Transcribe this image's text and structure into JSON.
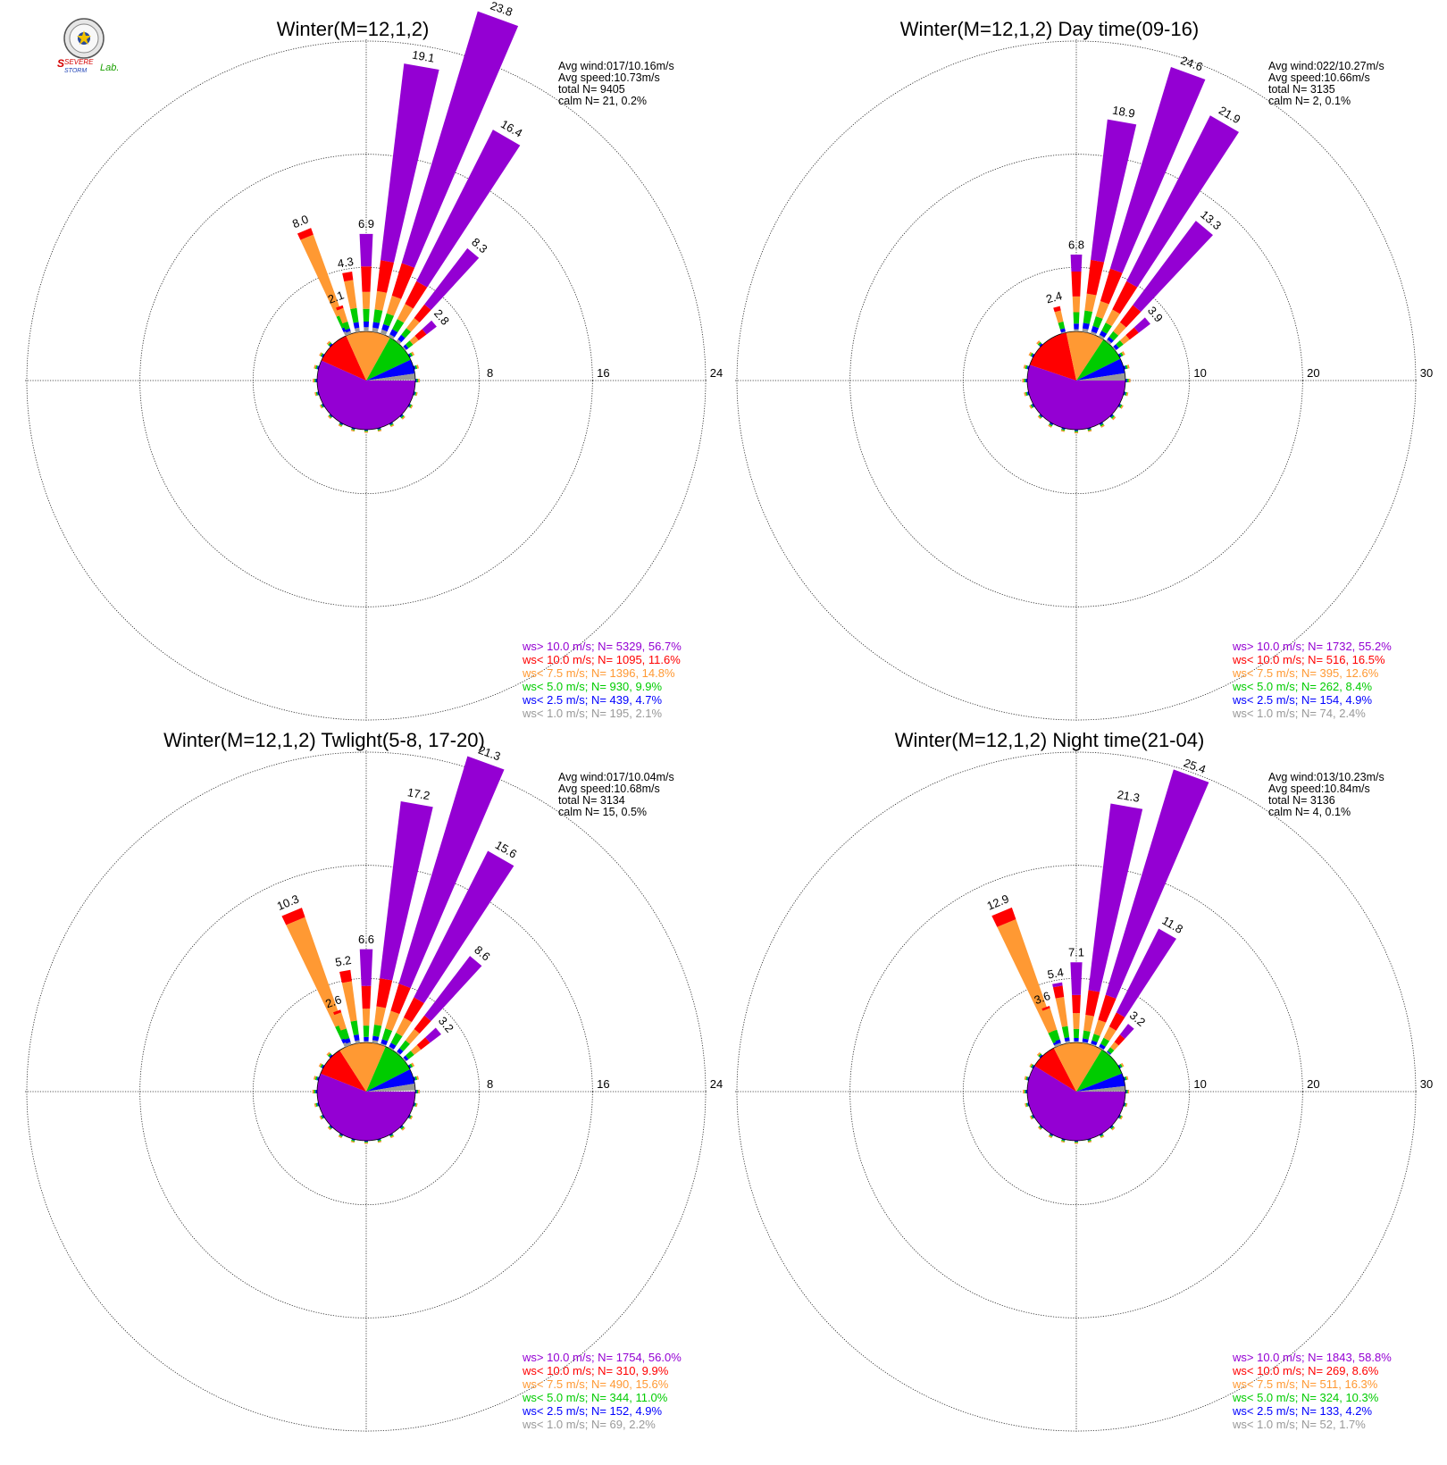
{
  "logo": {
    "text_severe": "SEVERE",
    "text_storm": "STORM",
    "text_lab": "Lab."
  },
  "legend_labels": [
    "ws> 10.0 m/s; N=",
    "ws< 10.0 m/s; N=",
    "ws<  7.5 m/s; N=",
    "ws<  5.0 m/s; N=",
    "ws<  2.5 m/s; N=",
    "ws<  1.0 m/s; N="
  ],
  "class_colors": [
    "#9400d3",
    "#ff0000",
    "#ff9933",
    "#00cc00",
    "#0000ff",
    "#999999"
  ],
  "chart_data": [
    {
      "type": "windrose",
      "title": "Winter(M=12,1,2)",
      "rmax": 24,
      "rings": [
        8,
        16,
        24
      ],
      "stats": [
        "Avg wind:017/10.16m/s",
        "Avg speed:10.73m/s",
        "total N=       9405",
        "calm N=      21,   0.2%"
      ],
      "legend": [
        "5329, 56.7%",
        "1095, 11.6%",
        "1396, 14.8%",
        "930,  9.9%",
        "439,  4.7%",
        "195,  2.1%"
      ],
      "pie_pct": [
        56.7,
        11.6,
        14.8,
        9.9,
        4.7,
        2.1
      ],
      "petals": [
        {
          "dir": 337.5,
          "total": 8.0,
          "label": "8.0",
          "segs": [
            0,
            0.5,
            6.0,
            0.9,
            0.3,
            0.3
          ]
        },
        {
          "dir": 340,
          "total": 2.1,
          "label": "2.1",
          "segs": [
            0,
            0.2,
            1.0,
            0.5,
            0.2,
            0.2
          ]
        },
        {
          "dir": 350,
          "total": 4.3,
          "label": "4.3",
          "segs": [
            0,
            0.6,
            2.0,
            1.0,
            0.4,
            0.3
          ]
        },
        {
          "dir": 0,
          "total": 6.9,
          "label": "6.9",
          "segs": [
            2.3,
            1.8,
            1.2,
            0.9,
            0.4,
            0.3
          ]
        },
        {
          "dir": 10,
          "total": 19.1,
          "label": "19.1",
          "segs": [
            14.0,
            2.2,
            1.3,
            0.9,
            0.4,
            0.3
          ]
        },
        {
          "dir": 20,
          "total": 23.8,
          "label": "23.8",
          "segs": [
            18.6,
            2.4,
            1.3,
            0.8,
            0.4,
            0.3
          ]
        },
        {
          "dir": 30,
          "total": 16.4,
          "label": "16.4",
          "segs": [
            12.0,
            1.8,
            1.2,
            0.8,
            0.4,
            0.2
          ]
        },
        {
          "dir": 40,
          "total": 8.3,
          "label": "8.3",
          "segs": [
            5.0,
            1.2,
            0.9,
            0.6,
            0.4,
            0.2
          ]
        },
        {
          "dir": 50,
          "total": 2.8,
          "label": "2.8",
          "segs": [
            0.9,
            0.7,
            0.5,
            0.4,
            0.2,
            0.1
          ]
        }
      ],
      "small_petals": [
        0.45,
        0.4,
        0.35,
        0.3,
        0.32,
        0.35,
        0.3,
        0.28,
        0.25,
        0.27,
        0.3,
        0.28,
        0.3,
        0.32,
        0.35,
        0.38,
        0.35,
        0.4
      ]
    },
    {
      "type": "windrose",
      "title": "Winter(M=12,1,2) Day time(09-16)",
      "rmax": 30,
      "rings": [
        10,
        20,
        30
      ],
      "stats": [
        "Avg wind:022/10.27m/s",
        "Avg speed:10.66m/s",
        "total N=       3135",
        "calm N=        2,   0.1%"
      ],
      "legend": [
        "1732, 55.2%",
        "516, 16.5%",
        "395, 12.6%",
        "262,  8.4%",
        "154,  4.9%",
        "74,  2.4%"
      ],
      "pie_pct": [
        55.2,
        16.5,
        12.6,
        8.4,
        4.9,
        2.4
      ],
      "petals": [
        {
          "dir": 345,
          "total": 2.4,
          "label": "2.4",
          "segs": [
            0,
            0.4,
            1.0,
            0.6,
            0.3,
            0.1
          ]
        },
        {
          "dir": 0,
          "total": 6.8,
          "label": "6.8",
          "segs": [
            1.5,
            2.2,
            1.4,
            1.0,
            0.5,
            0.2
          ]
        },
        {
          "dir": 10,
          "total": 18.9,
          "label": "18.9",
          "segs": [
            12.5,
            3.0,
            1.5,
            1.1,
            0.5,
            0.3
          ]
        },
        {
          "dir": 20,
          "total": 24.6,
          "label": "24.6",
          "segs": [
            18.6,
            3.0,
            1.4,
            0.9,
            0.5,
            0.2
          ]
        },
        {
          "dir": 30,
          "total": 21.9,
          "label": "21.9",
          "segs": [
            16.4,
            2.8,
            1.3,
            0.8,
            0.4,
            0.2
          ]
        },
        {
          "dir": 40,
          "total": 13.3,
          "label": "13.3",
          "segs": [
            9.3,
            1.9,
            1.0,
            0.6,
            0.3,
            0.2
          ]
        },
        {
          "dir": 50,
          "total": 3.9,
          "label": "3.9",
          "segs": [
            1.3,
            1.0,
            0.7,
            0.5,
            0.3,
            0.1
          ]
        }
      ],
      "small_petals": [
        0.5,
        0.45,
        0.4,
        0.35,
        0.35,
        0.4,
        0.35,
        0.3,
        0.3,
        0.3,
        0.35,
        0.3,
        0.35,
        0.38,
        0.4,
        0.42,
        0.4,
        0.45
      ]
    },
    {
      "type": "windrose",
      "title": "Winter(M=12,1,2) Twlight(5-8, 17-20)",
      "rmax": 24,
      "rings": [
        8,
        16,
        24
      ],
      "stats": [
        "Avg wind:017/10.04m/s",
        "Avg speed:10.68m/s",
        "total N=       3134",
        "calm N=      15,   0.5%"
      ],
      "legend": [
        "1754, 56.0%",
        "310,  9.9%",
        "490, 15.6%",
        "344, 11.0%",
        "152,  4.9%",
        "69,  2.2%"
      ],
      "pie_pct": [
        56.0,
        9.9,
        15.6,
        11.0,
        4.9,
        2.2
      ],
      "petals": [
        {
          "dir": 337.5,
          "total": 10.3,
          "label": "10.3",
          "segs": [
            0,
            0.7,
            8.0,
            1.0,
            0.3,
            0.3
          ]
        },
        {
          "dir": 340,
          "total": 2.6,
          "label": "2.6",
          "segs": [
            0,
            0.2,
            1.2,
            0.7,
            0.3,
            0.2
          ]
        },
        {
          "dir": 350,
          "total": 5.2,
          "label": "5.2",
          "segs": [
            0,
            0.8,
            2.8,
            1.0,
            0.4,
            0.2
          ]
        },
        {
          "dir": 0,
          "total": 6.6,
          "label": "6.6",
          "segs": [
            2.6,
            1.6,
            1.2,
            0.8,
            0.3,
            0.1
          ]
        },
        {
          "dir": 10,
          "total": 17.2,
          "label": "17.2",
          "segs": [
            12.6,
            2.0,
            1.3,
            0.8,
            0.3,
            0.2
          ]
        },
        {
          "dir": 20,
          "total": 21.3,
          "label": "21.3",
          "segs": [
            16.8,
            2.0,
            1.3,
            0.8,
            0.3,
            0.1
          ]
        },
        {
          "dir": 30,
          "total": 15.6,
          "label": "15.6",
          "segs": [
            11.6,
            1.6,
            1.2,
            0.8,
            0.3,
            0.1
          ]
        },
        {
          "dir": 40,
          "total": 8.6,
          "label": "8.6",
          "segs": [
            5.3,
            1.2,
            1.0,
            0.7,
            0.3,
            0.1
          ]
        },
        {
          "dir": 50,
          "total": 3.2,
          "label": "3.2",
          "segs": [
            1.0,
            0.8,
            0.6,
            0.5,
            0.2,
            0.1
          ]
        }
      ],
      "small_petals": [
        0.45,
        0.4,
        0.35,
        0.3,
        0.3,
        0.35,
        0.3,
        0.28,
        0.25,
        0.28,
        0.3,
        0.3,
        0.32,
        0.35,
        0.38,
        0.4,
        0.38,
        0.42
      ]
    },
    {
      "type": "windrose",
      "title": "Winter(M=12,1,2) Night time(21-04)",
      "rmax": 30,
      "rings": [
        10,
        20,
        30
      ],
      "stats": [
        "Avg wind:013/10.23m/s",
        "Avg speed:10.84m/s",
        "total N=       3136",
        "calm N=        4,   0.1%"
      ],
      "legend": [
        "1843, 58.8%",
        "269,  8.6%",
        "511, 16.3%",
        "324, 10.3%",
        "133,  4.2%",
        "52,  1.7%"
      ],
      "pie_pct": [
        58.8,
        8.6,
        16.3,
        10.3,
        4.2,
        1.7
      ],
      "petals": [
        {
          "dir": 337.5,
          "total": 12.9,
          "label": "12.9",
          "segs": [
            0,
            1.1,
            10.4,
            1.0,
            0.2,
            0.2
          ]
        },
        {
          "dir": 340,
          "total": 3.6,
          "label": "3.6",
          "segs": [
            0,
            0.2,
            2.0,
            0.9,
            0.3,
            0.2
          ]
        },
        {
          "dir": 350,
          "total": 5.4,
          "label": "5.4",
          "segs": [
            0.3,
            1.0,
            2.6,
            1.0,
            0.3,
            0.2
          ]
        },
        {
          "dir": 0,
          "total": 7.1,
          "label": "7.1",
          "segs": [
            2.9,
            1.6,
            1.4,
            0.8,
            0.3,
            0.1
          ]
        },
        {
          "dir": 10,
          "total": 21.3,
          "label": "21.3",
          "segs": [
            16.6,
            2.2,
            1.4,
            0.7,
            0.3,
            0.1
          ]
        },
        {
          "dir": 20,
          "total": 25.4,
          "label": "25.4",
          "segs": [
            20.8,
            2.3,
            1.3,
            0.6,
            0.3,
            0.1
          ]
        },
        {
          "dir": 30,
          "total": 11.8,
          "label": "11.8",
          "segs": [
            8.3,
            1.4,
            1.1,
            0.6,
            0.3,
            0.1
          ]
        },
        {
          "dir": 40,
          "total": 3.2,
          "label": "3.2",
          "segs": [
            1.2,
            0.8,
            0.6,
            0.4,
            0.1,
            0.1
          ]
        }
      ],
      "small_petals": [
        0.4,
        0.35,
        0.3,
        0.28,
        0.3,
        0.32,
        0.3,
        0.28,
        0.25,
        0.27,
        0.3,
        0.28,
        0.3,
        0.32,
        0.35,
        0.35,
        0.33,
        0.38
      ]
    }
  ]
}
